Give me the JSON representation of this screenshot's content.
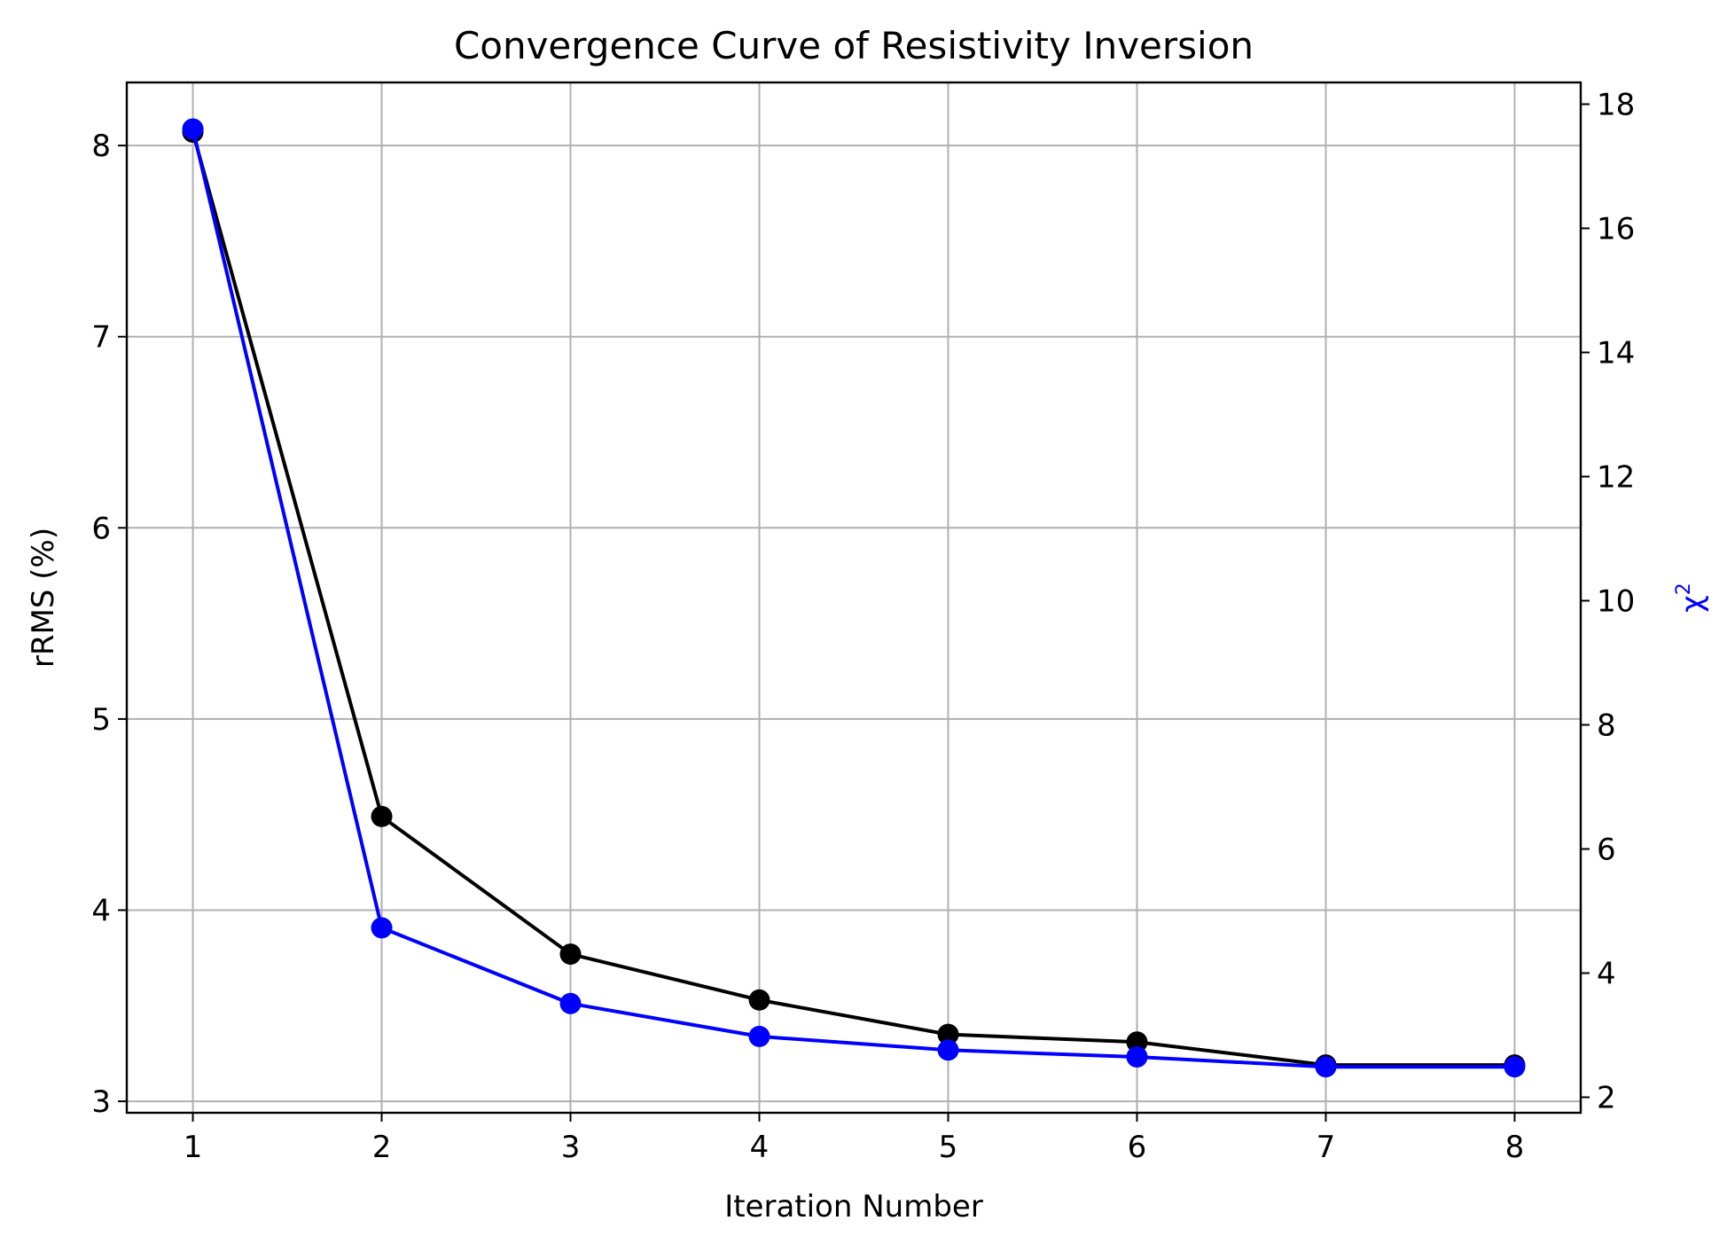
{
  "chart_data": {
    "type": "line",
    "title": "Convergence Curve of Resistivity Inversion",
    "xlabel": "Iteration Number",
    "ylabel": "rRMS (%)",
    "ylabel_right": "χ",
    "ylabel_right_superscript": "2",
    "x": [
      1,
      2,
      3,
      4,
      5,
      6,
      7,
      8
    ],
    "x_ticks": [
      "1",
      "2",
      "3",
      "4",
      "5",
      "6",
      "7",
      "8"
    ],
    "xlim": [
      0.65,
      8.35
    ],
    "ylim_left": [
      2.94,
      8.33
    ],
    "ylim_right": [
      1.75,
      18.35
    ],
    "y_ticks_left": [
      "3",
      "4",
      "5",
      "6",
      "7",
      "8"
    ],
    "y_ticks_right": [
      "2",
      "4",
      "6",
      "8",
      "10",
      "12",
      "14",
      "16",
      "18"
    ],
    "grid": true,
    "series": [
      {
        "axis": "left",
        "color": "#000000",
        "marker": "circle",
        "values": [
          8.07,
          4.49,
          3.77,
          3.53,
          3.35,
          3.31,
          3.19,
          3.19
        ]
      },
      {
        "axis": "right",
        "color": "#0000ff",
        "marker": "circle",
        "values": [
          17.6,
          4.73,
          3.51,
          2.98,
          2.76,
          2.65,
          2.49,
          2.49
        ]
      }
    ]
  }
}
